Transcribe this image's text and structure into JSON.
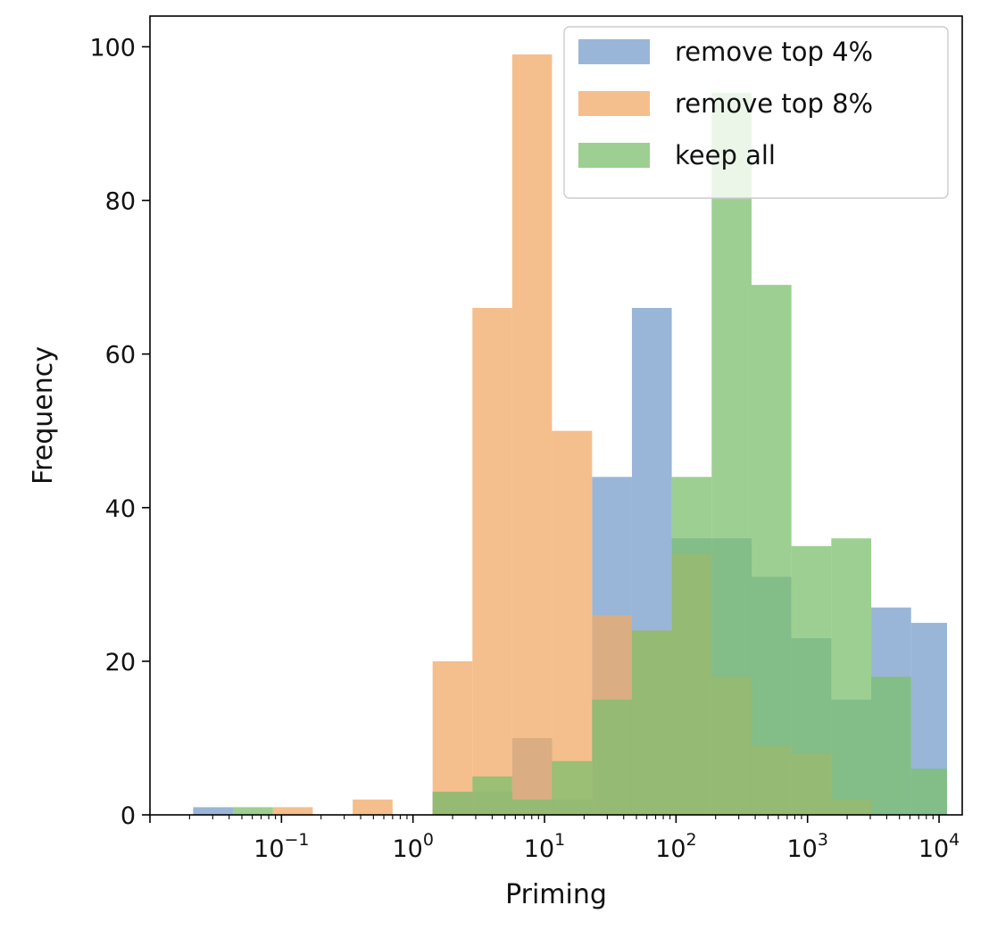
{
  "chart_data": {
    "type": "bar",
    "subtype": "histogram",
    "title": "",
    "xlabel": "Priming",
    "ylabel": "Frequency",
    "x_scale": "log",
    "xlim": [
      0.01,
      15000
    ],
    "ylim": [
      0,
      104
    ],
    "grid": false,
    "legend_placement": "top-right",
    "x_ticks": [
      {
        "value": 0.1,
        "base": "10",
        "exp": "−1"
      },
      {
        "value": 1,
        "base": "10",
        "exp": "0"
      },
      {
        "value": 10,
        "base": "10",
        "exp": "1"
      },
      {
        "value": 100,
        "base": "10",
        "exp": "2"
      },
      {
        "value": 1000,
        "base": "10",
        "exp": "3"
      },
      {
        "value": 10000,
        "base": "10",
        "exp": "4"
      }
    ],
    "y_ticks": [
      {
        "value": 0,
        "label": "0"
      },
      {
        "value": 20,
        "label": "20"
      },
      {
        "value": 40,
        "label": "40"
      },
      {
        "value": 60,
        "label": "60"
      },
      {
        "value": 80,
        "label": "80"
      },
      {
        "value": 100,
        "label": "100"
      }
    ],
    "bin_edges": [
      0.0213,
      0.0428,
      0.0861,
      0.173,
      0.348,
      0.7,
      1.41,
      2.83,
      5.68,
      11.4,
      23.0,
      46.2,
      92.8,
      186.6,
      375.1,
      754.3,
      1516,
      3049,
      6130,
      11500
    ],
    "series": [
      {
        "name": "remove top 4%",
        "color": "#779ecb",
        "values": [
          1,
          0,
          0,
          0,
          0,
          0,
          3,
          3,
          10,
          2,
          44,
          66,
          36,
          36,
          31,
          23,
          15,
          27,
          25
        ]
      },
      {
        "name": "remove top 8%",
        "color": "#f0aa65",
        "values": [
          0,
          0,
          1,
          0,
          2,
          0,
          20,
          66,
          99,
          50,
          26,
          24,
          34,
          18,
          9,
          8,
          2,
          0,
          0
        ]
      },
      {
        "name": "keep all",
        "color": "#7cbf6e",
        "values": [
          0,
          1,
          0,
          0,
          0,
          0,
          3,
          5,
          2,
          7,
          15,
          24,
          44,
          94,
          69,
          35,
          36,
          18,
          6
        ]
      }
    ]
  }
}
